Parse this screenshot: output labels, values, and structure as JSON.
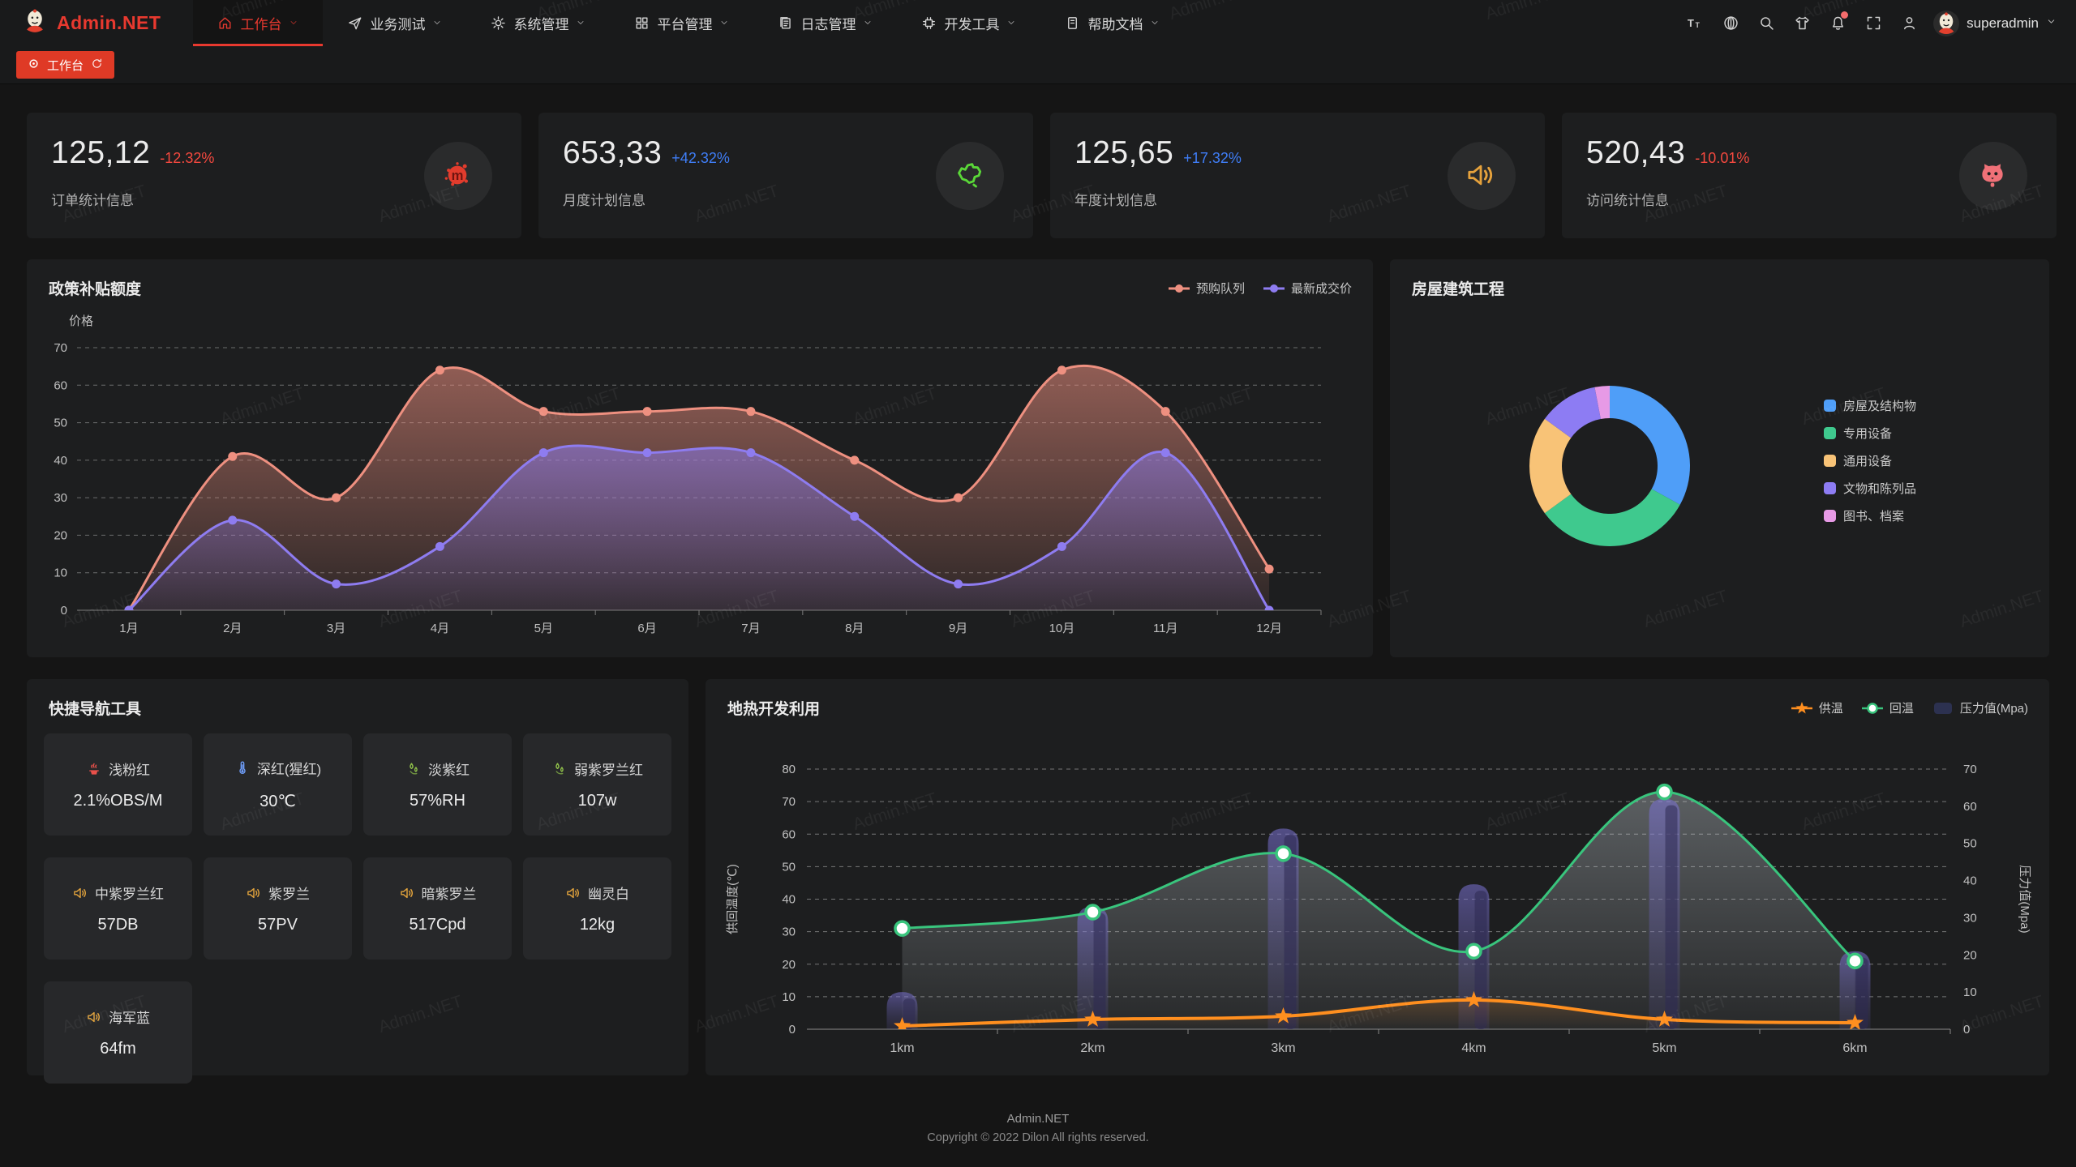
{
  "watermark": "Admin.NET",
  "navbar": {
    "logo_text": "Admin.NET",
    "menu": [
      {
        "label": "工作台",
        "icon": "home-icon",
        "active": true
      },
      {
        "label": "业务测试",
        "icon": "send-icon",
        "active": false
      },
      {
        "label": "系统管理",
        "icon": "gear-icon",
        "active": false
      },
      {
        "label": "平台管理",
        "icon": "grid-icon",
        "active": false
      },
      {
        "label": "日志管理",
        "icon": "log-icon",
        "active": false
      },
      {
        "label": "开发工具",
        "icon": "chip-icon",
        "active": false
      },
      {
        "label": "帮助文档",
        "icon": "doc-icon",
        "active": false
      }
    ],
    "action_icons": [
      "font-size-icon",
      "language-icon",
      "search-icon",
      "theme-icon",
      "notification-icon",
      "fullscreen-icon",
      "person-icon"
    ],
    "notification_dot_color": "#f56c6c",
    "user_name": "superadmin"
  },
  "tabbar": {
    "active_tab": "工作台"
  },
  "stat_cards": [
    {
      "value": "125,12",
      "delta": "-12.32%",
      "trend": "down",
      "label": "订单统计信息",
      "icon": "paint-splat-icon",
      "icon_color": "#e23c2d"
    },
    {
      "value": "653,33",
      "delta": "+42.32%",
      "trend": "up",
      "label": "月度计划信息",
      "icon": "china-map-icon",
      "icon_color": "#5ad838"
    },
    {
      "value": "125,65",
      "delta": "+17.32%",
      "trend": "up",
      "label": "年度计划信息",
      "icon": "speaker-icon",
      "icon_color": "#e6a23c"
    },
    {
      "value": "520,43",
      "delta": "-10.01%",
      "trend": "down",
      "label": "访问统计信息",
      "icon": "cat-icon",
      "icon_color": "#f07178"
    }
  ],
  "quick_nav": {
    "title": "快捷导航工具",
    "items": [
      {
        "icon": "fire-icon",
        "icon_color": "#e8504a",
        "name": "浅粉红",
        "value": "2.1%OBS/M"
      },
      {
        "icon": "thermometer-icon",
        "icon_color": "#6d9bf5",
        "name": "深红(猩红)",
        "value": "30℃"
      },
      {
        "icon": "drops-icon",
        "icon_color": "#8fc04a",
        "name": "淡紫红",
        "value": "57%RH"
      },
      {
        "icon": "drops-icon",
        "icon_color": "#8fc04a",
        "name": "弱紫罗兰红",
        "value": "107w"
      },
      {
        "icon": "speaker-icon",
        "icon_color": "#e2a33c",
        "name": "中紫罗兰红",
        "value": "57DB"
      },
      {
        "icon": "speaker-icon",
        "icon_color": "#e2a33c",
        "name": "紫罗兰",
        "value": "57PV"
      },
      {
        "icon": "speaker-icon",
        "icon_color": "#e2a33c",
        "name": "暗紫罗兰",
        "value": "517Cpd"
      },
      {
        "icon": "speaker-icon",
        "icon_color": "#e2a33c",
        "name": "幽灵白",
        "value": "12kg"
      },
      {
        "icon": "speaker-icon",
        "icon_color": "#e2a33c",
        "name": "海军蓝",
        "value": "64fm"
      }
    ]
  },
  "chart_data": [
    {
      "type": "area",
      "title": "政策补贴额度",
      "ylabel": "价格",
      "ylim": [
        0,
        70
      ],
      "yticks": [
        0,
        10,
        20,
        30,
        40,
        50,
        60,
        70
      ],
      "grid": "dashed",
      "legend_position": "top-right",
      "categories": [
        "1月",
        "2月",
        "3月",
        "4月",
        "5月",
        "6月",
        "7月",
        "8月",
        "9月",
        "10月",
        "11月",
        "12月"
      ],
      "series": [
        {
          "name": "预购队列",
          "color": "#ee9080",
          "values": [
            0,
            41,
            30,
            64,
            53,
            53,
            53,
            40,
            30,
            64,
            53,
            11
          ]
        },
        {
          "name": "最新成交价",
          "color": "#8e7cf0",
          "values": [
            0,
            24,
            7,
            17,
            42,
            42,
            42,
            25,
            7,
            17,
            42,
            0
          ]
        }
      ]
    },
    {
      "type": "pie",
      "subtype": "donut",
      "title": "房屋建筑工程",
      "legend_position": "right",
      "items": [
        {
          "name": "房屋及结构物",
          "value": 33,
          "color": "#4f9ef8"
        },
        {
          "name": "专用设备",
          "value": 32,
          "color": "#3fc98e"
        },
        {
          "name": "通用设备",
          "value": 20,
          "color": "#f8c377"
        },
        {
          "name": "文物和陈列品",
          "value": 12,
          "color": "#8d7cf3"
        },
        {
          "name": "图书、档案",
          "value": 3,
          "color": "#e79ae6"
        }
      ]
    },
    {
      "type": "line+bar",
      "title": "地热开发利用",
      "categories": [
        "1km",
        "2km",
        "3km",
        "4km",
        "5km",
        "6km"
      ],
      "ylabel_left": "供回温度(℃)",
      "ylabel_right": "压力值(Mpa)",
      "ylim_left": [
        0,
        80
      ],
      "ylim_right": [
        0,
        70
      ],
      "yticks_left": [
        0,
        10,
        20,
        30,
        40,
        50,
        60,
        70,
        80
      ],
      "yticks_right": [
        0,
        10,
        20,
        30,
        40,
        50,
        60,
        70
      ],
      "grid": "dashed",
      "legend_position": "top-right",
      "series": [
        {
          "name": "供温",
          "type": "line",
          "marker": "star",
          "axis": "left",
          "color": "#ff8f1f",
          "values": [
            1,
            3,
            4,
            9,
            3,
            2
          ]
        },
        {
          "name": "回温",
          "type": "line",
          "marker": "circle",
          "axis": "left",
          "color": "#39c57d",
          "values": [
            31,
            36,
            54,
            24,
            73,
            21
          ]
        },
        {
          "name": "压力值(Mpa)",
          "type": "bar",
          "axis": "right",
          "color": "#6e68be",
          "legend_swatch": "#2c3150",
          "values": [
            10,
            33,
            54,
            39,
            62,
            21
          ]
        }
      ]
    }
  ],
  "footer": {
    "line1": "Admin.NET",
    "line2": "Copyright © 2022 Dilon All rights reserved."
  }
}
